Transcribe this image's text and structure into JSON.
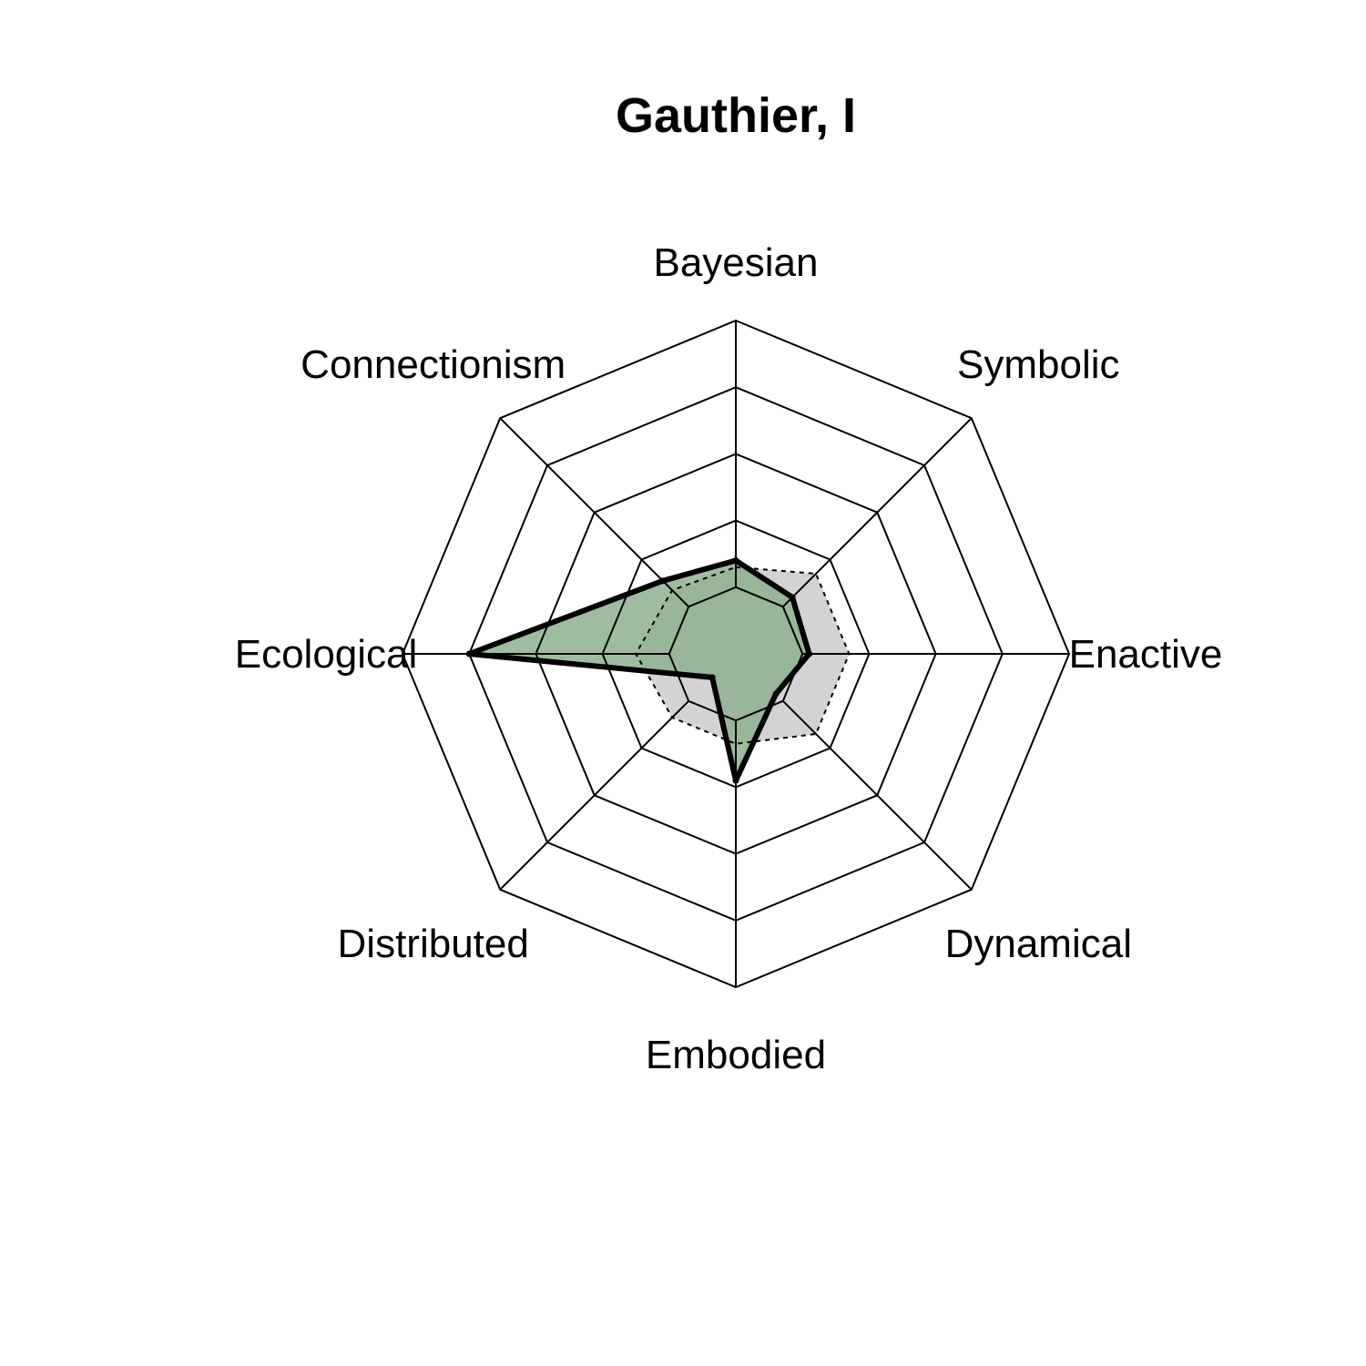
{
  "chart_data": {
    "type": "radar",
    "title": "Gauthier, I",
    "axes": [
      "Bayesian",
      "Symbolic",
      "Enactive",
      "Dynamical",
      "Embodied",
      "Distributed",
      "Ecological",
      "Connectionism"
    ],
    "range": [
      0,
      1
    ],
    "grid_levels": 5,
    "series": [
      {
        "values": [
          0.28,
          0.24,
          0.22,
          0.17,
          0.38,
          0.1,
          0.8,
          0.31
        ],
        "fill_color": "#8fb08f",
        "line_color": "#000000"
      },
      {
        "values": [
          0.26,
          0.34,
          0.34,
          0.34,
          0.27,
          0.27,
          0.3,
          0.27
        ],
        "fill_color": "#d3d3d3",
        "line_color": "#000000",
        "line_style": "dotted"
      }
    ]
  }
}
